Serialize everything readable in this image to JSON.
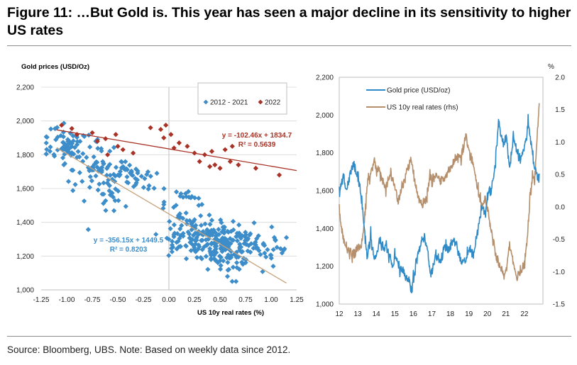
{
  "title": "Figure 11: …But Gold is. This year has seen a major decline in its sensitivity to higher US rates",
  "source": "Source: Bloomberg, UBS. Note: Based on weekly data since 2012.",
  "colors": {
    "series_2012_2021": "#3c8dc9",
    "series_2022": "#a93226",
    "gold_line": "#2f8bc8",
    "real_rates_line": "#b58f6b",
    "fit_2012_2021": "#c7a27c",
    "fit_2022": "#a93226"
  },
  "chart_data": [
    {
      "type": "scatter",
      "ylabel": "Gold prices (USD/Oz)",
      "xlabel": "US 10y real rates (%)",
      "xlim": [
        -1.25,
        1.25
      ],
      "ylim": [
        1000,
        2200
      ],
      "x_ticks": [
        -1.25,
        -1.0,
        -0.75,
        -0.5,
        -0.25,
        0.0,
        0.25,
        0.5,
        0.75,
        1.0,
        1.25
      ],
      "x_tick_labels": [
        "-1.25",
        "-1.00",
        "-0.75",
        "-0.50",
        "-0.25",
        "0.00",
        "0.25",
        "0.50",
        "0.75",
        "1.00",
        "1.25"
      ],
      "y_ticks": [
        1000,
        1200,
        1400,
        1600,
        1800,
        2000,
        2200
      ],
      "y_tick_labels": [
        "1,000",
        "1,200",
        "1,400",
        "1,600",
        "1,800",
        "2,000",
        "2,200"
      ],
      "grid": "horizontal",
      "legend_position": "top-right",
      "series": [
        {
          "name": "2012 - 2021",
          "marker": "diamond",
          "clusters": [
            {
              "x": -1.0,
              "y": 1860,
              "sx": 0.12,
              "sy": 60,
              "n": 70
            },
            {
              "x": -0.65,
              "y": 1720,
              "sx": 0.15,
              "sy": 70,
              "n": 70
            },
            {
              "x": -0.35,
              "y": 1680,
              "sx": 0.12,
              "sy": 60,
              "n": 35
            },
            {
              "x": -0.6,
              "y": 1500,
              "sx": 0.1,
              "sy": 50,
              "n": 12
            },
            {
              "x": 0.15,
              "y": 1500,
              "sx": 0.12,
              "sy": 60,
              "n": 30
            },
            {
              "x": 0.3,
              "y": 1300,
              "sx": 0.18,
              "sy": 60,
              "n": 130
            },
            {
              "x": 0.55,
              "y": 1230,
              "sx": 0.15,
              "sy": 70,
              "n": 90
            },
            {
              "x": 0.8,
              "y": 1300,
              "sx": 0.15,
              "sy": 50,
              "n": 40
            },
            {
              "x": 1.05,
              "y": 1230,
              "sx": 0.07,
              "sy": 25,
              "n": 12
            }
          ],
          "fit": {
            "slope": -356.15,
            "intercept": 1449.5,
            "r2": 0.8203,
            "x_range": [
              -1.1,
              1.15
            ]
          },
          "equation_label": "y = -356.15x + 1449.5",
          "r2_label": "R² = 0.8203"
        },
        {
          "name": "2022",
          "marker": "diamond",
          "points": [
            [
              -1.05,
              1975
            ],
            [
              -0.95,
              1955
            ],
            [
              -0.9,
              1920
            ],
            [
              -0.75,
              1930
            ],
            [
              -0.7,
              1880
            ],
            [
              -0.62,
              1895
            ],
            [
              -0.52,
              1920
            ],
            [
              -0.5,
              1850
            ],
            [
              -0.45,
              1830
            ],
            [
              -0.6,
              1800
            ],
            [
              -0.35,
              1810
            ],
            [
              -0.18,
              1960
            ],
            [
              -0.08,
              1950
            ],
            [
              -0.03,
              1975
            ],
            [
              -0.05,
              1900
            ],
            [
              0.02,
              1920
            ],
            [
              0.1,
              1870
            ],
            [
              0.05,
              1840
            ],
            [
              0.18,
              1850
            ],
            [
              0.25,
              1810
            ],
            [
              0.35,
              1800
            ],
            [
              0.42,
              1820
            ],
            [
              0.55,
              1830
            ],
            [
              0.62,
              1850
            ],
            [
              0.3,
              1760
            ],
            [
              0.45,
              1740
            ],
            [
              0.5,
              1720
            ],
            [
              0.6,
              1760
            ],
            [
              0.68,
              1740
            ],
            [
              0.85,
              1720
            ],
            [
              1.08,
              1680
            ],
            [
              0.4,
              1730
            ]
          ],
          "fit": {
            "slope": -102.46,
            "intercept": 1834.7,
            "r2": 0.5639,
            "x_range": [
              -1.1,
              1.25
            ]
          },
          "equation_label": "y = -102.46x + 1834.7",
          "r2_label": "R² = 0.5639"
        }
      ]
    },
    {
      "type": "line",
      "x_tick_labels": [
        "12",
        "13",
        "14",
        "15",
        "16",
        "17",
        "18",
        "19",
        "20",
        "21",
        "22"
      ],
      "xlim": [
        2012,
        2023
      ],
      "ylim_left": [
        1000,
        2200
      ],
      "ylim_right": [
        -1.5,
        2.0
      ],
      "y_left_ticks": [
        "1,000",
        "1,200",
        "1,400",
        "1,600",
        "1,800",
        "2,000",
        "2,200"
      ],
      "y_right_ticks": [
        "-1.5",
        "-1.0",
        "-0.5",
        "0.0",
        "0.5",
        "1.0",
        "1.5",
        "2.0"
      ],
      "y_right_unit": "%",
      "legend_position": "top-left",
      "series": [
        {
          "name": "Gold price (USD/oz)",
          "axis": "left",
          "values": [
            [
              2012.0,
              1580
            ],
            [
              2012.2,
              1680
            ],
            [
              2012.4,
              1600
            ],
            [
              2012.6,
              1700
            ],
            [
              2012.8,
              1750
            ],
            [
              2012.95,
              1690
            ],
            [
              2013.1,
              1640
            ],
            [
              2013.3,
              1450
            ],
            [
              2013.5,
              1250
            ],
            [
              2013.7,
              1350
            ],
            [
              2013.9,
              1230
            ],
            [
              2014.1,
              1300
            ],
            [
              2014.2,
              1340
            ],
            [
              2014.4,
              1290
            ],
            [
              2014.5,
              1320
            ],
            [
              2014.7,
              1250
            ],
            [
              2014.9,
              1190
            ],
            [
              2015.0,
              1260
            ],
            [
              2015.2,
              1200
            ],
            [
              2015.5,
              1170
            ],
            [
              2015.7,
              1130
            ],
            [
              2015.9,
              1070
            ],
            [
              2016.0,
              1120
            ],
            [
              2016.2,
              1250
            ],
            [
              2016.5,
              1340
            ],
            [
              2016.6,
              1350
            ],
            [
              2016.8,
              1260
            ],
            [
              2016.95,
              1150
            ],
            [
              2017.2,
              1250
            ],
            [
              2017.5,
              1230
            ],
            [
              2017.7,
              1320
            ],
            [
              2017.9,
              1280
            ],
            [
              2018.1,
              1340
            ],
            [
              2018.3,
              1320
            ],
            [
              2018.6,
              1210
            ],
            [
              2018.8,
              1230
            ],
            [
              2019.0,
              1290
            ],
            [
              2019.3,
              1280
            ],
            [
              2019.5,
              1400
            ],
            [
              2019.7,
              1510
            ],
            [
              2019.9,
              1480
            ],
            [
              2020.0,
              1560
            ],
            [
              2020.2,
              1600
            ],
            [
              2020.4,
              1720
            ],
            [
              2020.6,
              1960
            ],
            [
              2020.75,
              1900
            ],
            [
              2020.9,
              1830
            ],
            [
              2021.0,
              1900
            ],
            [
              2021.2,
              1720
            ],
            [
              2021.4,
              1880
            ],
            [
              2021.6,
              1800
            ],
            [
              2021.8,
              1780
            ],
            [
              2022.0,
              1820
            ],
            [
              2022.2,
              1950
            ],
            [
              2022.4,
              1840
            ],
            [
              2022.5,
              1750
            ],
            [
              2022.7,
              1670
            ],
            [
              2022.8,
              1690
            ]
          ]
        },
        {
          "name": "US 10y real rates (rhs)",
          "axis": "right",
          "values": [
            [
              2012.0,
              0.0
            ],
            [
              2012.1,
              -0.3
            ],
            [
              2012.3,
              -0.6
            ],
            [
              2012.5,
              -0.65
            ],
            [
              2012.7,
              -0.75
            ],
            [
              2012.9,
              -0.7
            ],
            [
              2013.0,
              -0.6
            ],
            [
              2013.2,
              -0.6
            ],
            [
              2013.4,
              -0.1
            ],
            [
              2013.5,
              0.3
            ],
            [
              2013.7,
              0.5
            ],
            [
              2013.9,
              0.7
            ],
            [
              2014.0,
              0.6
            ],
            [
              2014.2,
              0.5
            ],
            [
              2014.5,
              0.3
            ],
            [
              2014.8,
              0.5
            ],
            [
              2015.0,
              0.3
            ],
            [
              2015.2,
              0.1
            ],
            [
              2015.5,
              0.4
            ],
            [
              2015.7,
              0.6
            ],
            [
              2015.9,
              0.7
            ],
            [
              2016.0,
              0.5
            ],
            [
              2016.2,
              0.2
            ],
            [
              2016.5,
              0.0
            ],
            [
              2016.7,
              0.1
            ],
            [
              2016.9,
              0.5
            ],
            [
              2017.0,
              0.4
            ],
            [
              2017.2,
              0.5
            ],
            [
              2017.5,
              0.4
            ],
            [
              2017.8,
              0.45
            ],
            [
              2018.0,
              0.6
            ],
            [
              2018.3,
              0.75
            ],
            [
              2018.6,
              0.8
            ],
            [
              2018.85,
              1.1
            ],
            [
              2018.95,
              0.95
            ],
            [
              2019.1,
              0.75
            ],
            [
              2019.3,
              0.55
            ],
            [
              2019.5,
              0.25
            ],
            [
              2019.7,
              0.0
            ],
            [
              2019.9,
              0.15
            ],
            [
              2020.0,
              0.0
            ],
            [
              2020.15,
              -0.3
            ],
            [
              2020.3,
              -0.5
            ],
            [
              2020.5,
              -0.8
            ],
            [
              2020.7,
              -0.95
            ],
            [
              2020.9,
              -1.05
            ],
            [
              2021.0,
              -1.0
            ],
            [
              2021.2,
              -0.6
            ],
            [
              2021.4,
              -0.85
            ],
            [
              2021.6,
              -1.1
            ],
            [
              2021.8,
              -1.0
            ],
            [
              2022.0,
              -0.9
            ],
            [
              2022.15,
              -0.5
            ],
            [
              2022.3,
              0.1
            ],
            [
              2022.45,
              0.5
            ],
            [
              2022.55,
              0.4
            ],
            [
              2022.65,
              0.9
            ],
            [
              2022.75,
              1.4
            ],
            [
              2022.8,
              1.6
            ]
          ]
        }
      ]
    }
  ]
}
